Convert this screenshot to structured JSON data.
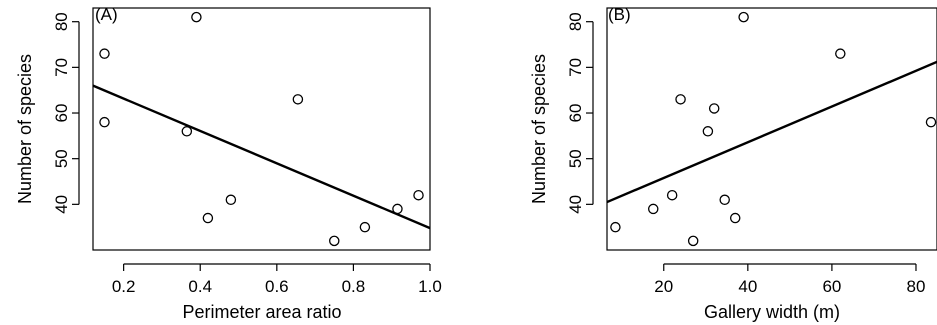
{
  "chart_data": [
    {
      "type": "scatter",
      "panel_label": "(A)",
      "xlabel": "Perimeter area ratio",
      "ylabel": "Number of species",
      "xlim": [
        0.12,
        1.0
      ],
      "ylim": [
        30,
        83
      ],
      "xticks": [
        0.2,
        0.4,
        0.6,
        0.8,
        1.0
      ],
      "xtick_labels": [
        "0.2",
        "0.4",
        "0.6",
        "0.8",
        "1.0"
      ],
      "yticks": [
        40,
        50,
        60,
        70,
        80
      ],
      "ytick_labels": [
        "40",
        "50",
        "60",
        "70",
        "80"
      ],
      "grid": false,
      "points": [
        {
          "x": 0.15,
          "y": 73
        },
        {
          "x": 0.15,
          "y": 58
        },
        {
          "x": 0.39,
          "y": 81
        },
        {
          "x": 0.365,
          "y": 56
        },
        {
          "x": 0.42,
          "y": 37
        },
        {
          "x": 0.48,
          "y": 41
        },
        {
          "x": 0.655,
          "y": 63
        },
        {
          "x": 0.75,
          "y": 32
        },
        {
          "x": 0.83,
          "y": 35
        },
        {
          "x": 0.915,
          "y": 39
        },
        {
          "x": 0.97,
          "y": 42
        }
      ],
      "trend_line": {
        "x": [
          0.12,
          1.0
        ],
        "y": [
          66,
          34.8
        ]
      }
    },
    {
      "type": "scatter",
      "panel_label": "(B)",
      "xlabel": "Gallery width (m)",
      "ylabel": "Number of species",
      "xlim": [
        6.5,
        85
      ],
      "ylim": [
        30,
        83
      ],
      "xticks": [
        20,
        40,
        60,
        80
      ],
      "xtick_labels": [
        "20",
        "40",
        "60",
        "80"
      ],
      "yticks": [
        40,
        50,
        60,
        70,
        80
      ],
      "ytick_labels": [
        "40",
        "50",
        "60",
        "70",
        "80"
      ],
      "grid": false,
      "points": [
        {
          "x": 8.5,
          "y": 35
        },
        {
          "x": 17.5,
          "y": 39
        },
        {
          "x": 22,
          "y": 42
        },
        {
          "x": 24,
          "y": 63
        },
        {
          "x": 27,
          "y": 32
        },
        {
          "x": 30.5,
          "y": 56
        },
        {
          "x": 32,
          "y": 61
        },
        {
          "x": 34.5,
          "y": 41
        },
        {
          "x": 37,
          "y": 37
        },
        {
          "x": 39,
          "y": 81
        },
        {
          "x": 62,
          "y": 73
        },
        {
          "x": 85,
          "y": 58
        }
      ],
      "trend_line": {
        "x": [
          6.5,
          85
        ],
        "y": [
          40.5,
          71.2
        ]
      }
    }
  ]
}
